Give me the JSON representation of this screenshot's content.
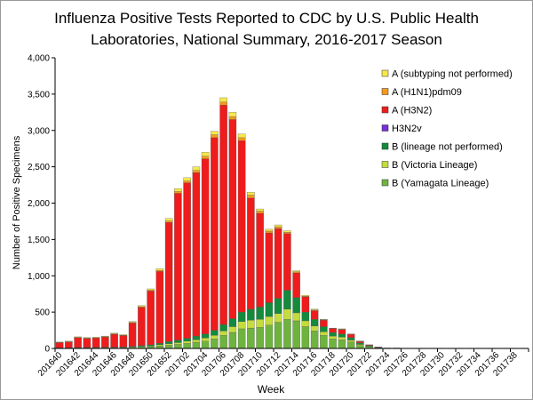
{
  "chart_data": {
    "type": "bar",
    "stacked": true,
    "title": [
      "Influenza Positive Tests Reported to CDC by U.S. Public Health",
      "Laboratories, National Summary, 2016-2017 Season"
    ],
    "x_label": "Week",
    "y_label": "Number of Positive Specimens",
    "categories": [
      "201640",
      null,
      "201642",
      null,
      "201644",
      null,
      "201646",
      null,
      "201648",
      null,
      "201650",
      null,
      "201652",
      null,
      "201702",
      null,
      "201704",
      null,
      "201706",
      null,
      "201708",
      null,
      "201710",
      null,
      "201712",
      null,
      "201714",
      null,
      "201716",
      null,
      "201718",
      null,
      "201720",
      null,
      "201722",
      null,
      "201724",
      null,
      "201726",
      null,
      "201728",
      null,
      "201730",
      null,
      "201732",
      null,
      "201734",
      null,
      "201736",
      null,
      "201738",
      null
    ],
    "ylim": [
      0,
      4000
    ],
    "yticks": [
      0,
      500,
      {
        "value": 1000,
        "label": "1,000"
      },
      {
        "value": 1500,
        "label": "1,500"
      },
      {
        "value": 2000,
        "label": "2,000"
      },
      {
        "value": 2500,
        "label": "2,500"
      },
      {
        "value": 3000,
        "label": "3,000"
      },
      {
        "value": 3500,
        "label": "3,500"
      },
      {
        "value": 4000,
        "label": "4,000"
      }
    ],
    "grid": false,
    "series": [
      {
        "name": "B (Yamagata Lineage)",
        "color": "#6fb33f",
        "values": [
          5,
          5,
          6,
          6,
          7,
          8,
          8,
          10,
          15,
          20,
          25,
          35,
          45,
          55,
          70,
          85,
          100,
          130,
          180,
          220,
          270,
          280,
          290,
          320,
          360,
          400,
          380,
          300,
          240,
          180,
          130,
          120,
          90,
          40,
          20,
          8,
          3,
          3,
          2,
          2,
          2,
          2,
          2,
          2,
          2,
          2,
          2,
          2,
          2,
          2,
          2,
          2
        ]
      },
      {
        "name": "B (Victoria Lineage)",
        "color": "#c4dc3c",
        "values": [
          2,
          2,
          3,
          3,
          3,
          4,
          4,
          5,
          6,
          8,
          10,
          15,
          20,
          25,
          30,
          35,
          45,
          50,
          60,
          80,
          100,
          110,
          110,
          120,
          120,
          140,
          110,
          80,
          70,
          50,
          40,
          35,
          25,
          15,
          8,
          3,
          1,
          1,
          1,
          1,
          1,
          1,
          1,
          1,
          1,
          1,
          1,
          1,
          1,
          1,
          1,
          1
        ]
      },
      {
        "name": "B (lineage not performed)",
        "color": "#148a3c",
        "values": [
          3,
          3,
          4,
          4,
          5,
          5,
          6,
          7,
          9,
          12,
          15,
          20,
          30,
          35,
          40,
          50,
          55,
          70,
          90,
          110,
          130,
          150,
          170,
          190,
          210,
          260,
          210,
          120,
          90,
          70,
          50,
          45,
          35,
          20,
          10,
          4,
          1,
          1,
          1,
          1,
          1,
          1,
          1,
          1,
          1,
          1,
          1,
          1,
          1,
          1,
          1,
          1
        ]
      },
      {
        "name": "H3N2v",
        "color": "#7a2ed6",
        "values": [
          0,
          0,
          0,
          0,
          0,
          0,
          0,
          0,
          0,
          0,
          0,
          0,
          0,
          0,
          0,
          0,
          0,
          0,
          0,
          0,
          0,
          0,
          0,
          0,
          0,
          0,
          0,
          0,
          0,
          0,
          0,
          0,
          0,
          0,
          0,
          0,
          0,
          0,
          0,
          0,
          0,
          0,
          0,
          0,
          0,
          0,
          0,
          0,
          0,
          0,
          0,
          0
        ]
      },
      {
        "name": "A (H3N2)",
        "color": "#ee1c1c",
        "values": [
          70,
          80,
          135,
          125,
          128,
          140,
          178,
          155,
          320,
          525,
          740,
          990,
          1640,
          2020,
          2140,
          2250,
          2410,
          2650,
          3020,
          2740,
          2360,
          1530,
          1290,
          960,
          960,
          780,
          340,
          210,
          120,
          90,
          55,
          60,
          45,
          20,
          10,
          4,
          2,
          2,
          1,
          1,
          1,
          1,
          1,
          1,
          1,
          1,
          1,
          1,
          1,
          1,
          1,
          1
        ]
      },
      {
        "name": "A (H1N1)pdm09",
        "color": "#f39a1c",
        "values": [
          3,
          3,
          4,
          4,
          4,
          5,
          5,
          5,
          8,
          10,
          12,
          15,
          20,
          25,
          25,
          30,
          35,
          40,
          40,
          40,
          40,
          40,
          30,
          25,
          25,
          20,
          15,
          10,
          10,
          5,
          3,
          5,
          3,
          3,
          1,
          0,
          0,
          0,
          0,
          0,
          0,
          0,
          0,
          0,
          0,
          0,
          0,
          0,
          0,
          0,
          0,
          0
        ]
      },
      {
        "name": "A (subtyping not performed)",
        "color": "#f6e84a",
        "values": [
          7,
          7,
          8,
          8,
          8,
          8,
          9,
          8,
          12,
          15,
          18,
          25,
          35,
          40,
          45,
          50,
          55,
          50,
          60,
          60,
          50,
          40,
          30,
          25,
          25,
          20,
          15,
          10,
          10,
          5,
          2,
          5,
          2,
          2,
          1,
          1,
          0,
          0,
          0,
          0,
          0,
          0,
          0,
          0,
          0,
          0,
          0,
          0,
          0,
          0,
          0,
          0
        ]
      }
    ]
  }
}
